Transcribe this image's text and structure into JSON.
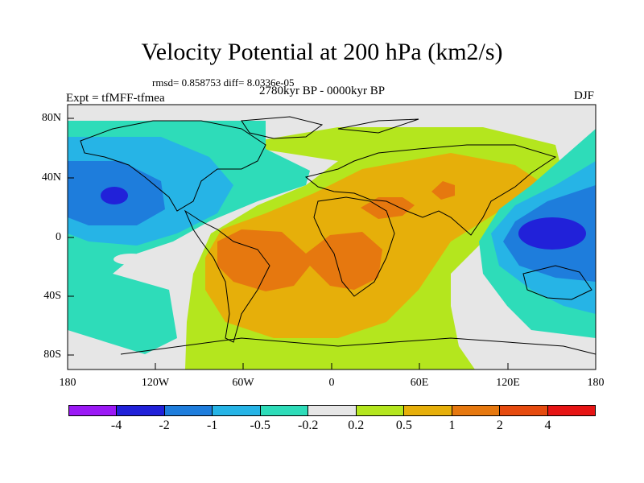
{
  "title": "Velocity Potential at 200 hPa (km2/s)",
  "stats": "rmsd= 0.858753  diff= 8.0336e-05",
  "period": "2780kyr BP - 0000kyr BP",
  "experiment": "Expt = tfMFF-tfmea",
  "season": "DJF",
  "axes": {
    "lat_labels": [
      "80N",
      "40N",
      "0",
      "40S",
      "80S"
    ],
    "lon_labels": [
      "180",
      "120W",
      "60W",
      "0",
      "60E",
      "120E",
      "180"
    ]
  },
  "colorbar": {
    "labels": [
      "-4",
      "-2",
      "-1",
      "-0.5",
      "-0.2",
      "0.2",
      "0.5",
      "1",
      "2",
      "4"
    ],
    "colors": [
      "#9b19f5",
      "#2121d9",
      "#1e7ddc",
      "#26b4e6",
      "#2edcb9",
      "#e6e6e6",
      "#b4e61e",
      "#e6af0a",
      "#e6780f",
      "#e64b0f",
      "#e61414"
    ]
  },
  "field_colors": {
    "neutral": "#e6e6e6",
    "pos_0_2": "#b4e61e",
    "pos_0_5": "#e6af0a",
    "pos_1": "#e6780f",
    "neg_0_2": "#2edcb9",
    "neg_0_5": "#26b4e6",
    "neg_1": "#1e7ddc",
    "neg_2": "#2121d9"
  }
}
